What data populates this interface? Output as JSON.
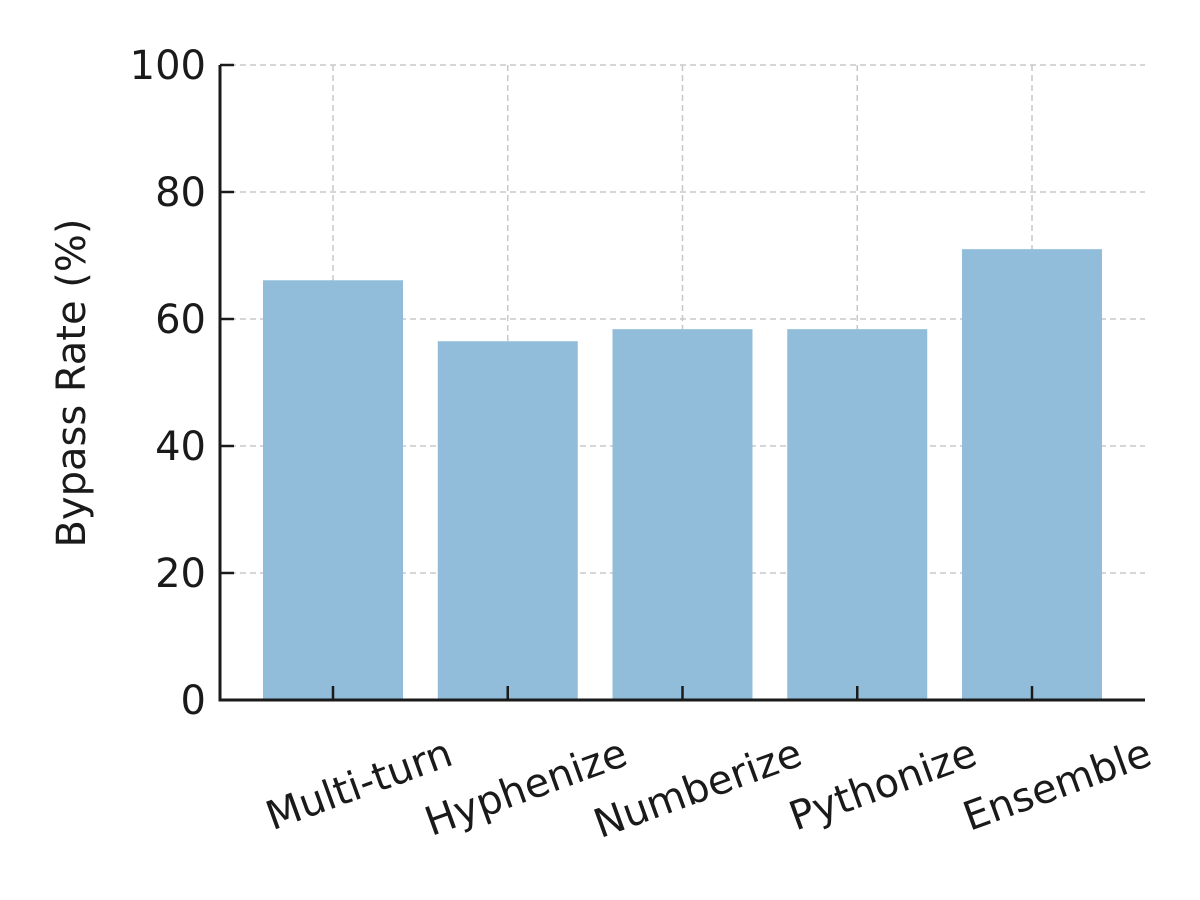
{
  "chart_data": {
    "type": "bar",
    "y_label": "Bypass Rate (%)",
    "categories": [
      "Multi-turn",
      "Hyphenize",
      "Numberize",
      "Pythonize",
      "Ensemble"
    ],
    "values": [
      66.1,
      56.5,
      58.4,
      58.4,
      71.0
    ],
    "color": "#91bdda",
    "ylim": [
      0,
      100
    ],
    "yticks": [
      0,
      20,
      40,
      60,
      80,
      100
    ],
    "grid": true
  }
}
